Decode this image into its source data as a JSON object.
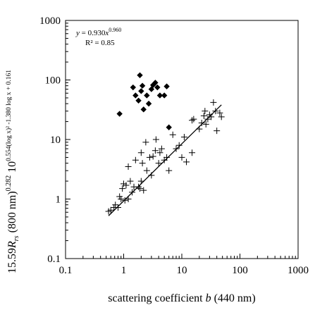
{
  "chart_data": {
    "type": "scatter",
    "xscale": "log",
    "yscale": "log",
    "xlim": [
      0.1,
      1000
    ],
    "ylim": [
      0.1,
      1000
    ],
    "grid": false,
    "xticks": [
      "0.1",
      "1",
      "10",
      "100",
      "1000"
    ],
    "yticks": [
      "0.1",
      "1",
      "10",
      "100",
      "1000"
    ],
    "xlabel": {
      "main": "scattering coefficient ",
      "var": "b",
      "rest": " (440 nm)"
    },
    "ylabel": {
      "prefix": "15.59",
      "var": "R",
      "sub": "rs",
      "mid": " (800 nm)",
      "exp1": "0.282",
      "base": " 10",
      "exp2": "0.554(log x)² -1.380 log x + 0.161"
    },
    "annotation": {
      "eq_lhs": "y",
      "eq_mid": " = 0.930",
      "eq_var": "x",
      "eq_exp": "0.960",
      "r2": "R² = 0.85"
    },
    "fit": {
      "a": 0.93,
      "b": 0.96,
      "x_range": [
        0.55,
        48
      ]
    },
    "series": [
      {
        "marker": "plus",
        "points": [
          [
            0.55,
            0.62
          ],
          [
            0.6,
            0.65
          ],
          [
            0.68,
            0.72
          ],
          [
            0.72,
            0.8
          ],
          [
            0.8,
            0.72
          ],
          [
            0.85,
            1.1
          ],
          [
            0.9,
            1.0
          ],
          [
            0.95,
            1.5
          ],
          [
            1.0,
            1.8
          ],
          [
            1.05,
            0.95
          ],
          [
            1.1,
            1.7
          ],
          [
            1.2,
            1.0
          ],
          [
            1.2,
            3.5
          ],
          [
            1.3,
            2.0
          ],
          [
            1.4,
            1.3
          ],
          [
            1.5,
            1.6
          ],
          [
            1.6,
            4.5
          ],
          [
            1.8,
            1.6
          ],
          [
            1.9,
            1.5
          ],
          [
            2.0,
            2.0
          ],
          [
            2.0,
            6.0
          ],
          [
            2.1,
            4.0
          ],
          [
            2.2,
            1.4
          ],
          [
            2.4,
            9.0
          ],
          [
            2.5,
            3.0
          ],
          [
            2.8,
            5.0
          ],
          [
            3.0,
            2.5
          ],
          [
            3.2,
            5.2
          ],
          [
            3.5,
            6.5
          ],
          [
            3.6,
            10.0
          ],
          [
            4.0,
            4.0
          ],
          [
            4.2,
            6.0
          ],
          [
            4.5,
            7.0
          ],
          [
            5.0,
            4.5
          ],
          [
            5.5,
            5.0
          ],
          [
            6.0,
            3.0
          ],
          [
            7.0,
            12.0
          ],
          [
            8.0,
            7.0
          ],
          [
            9.0,
            8.0
          ],
          [
            10.0,
            5.0
          ],
          [
            11.0,
            11.0
          ],
          [
            12.0,
            4.2
          ],
          [
            15.0,
            6.0
          ],
          [
            15.0,
            21.0
          ],
          [
            16.0,
            22.0
          ],
          [
            20.0,
            15.0
          ],
          [
            22.0,
            19.0
          ],
          [
            24.0,
            25.0
          ],
          [
            25.0,
            30.0
          ],
          [
            26.0,
            18.0
          ],
          [
            28.0,
            22.0
          ],
          [
            30.0,
            26.0
          ],
          [
            32.0,
            24.0
          ],
          [
            35.0,
            42.0
          ],
          [
            38.0,
            30.0
          ],
          [
            40.0,
            14.0
          ],
          [
            45.0,
            28.0
          ],
          [
            48.0,
            24.0
          ]
        ]
      },
      {
        "marker": "diamond",
        "points": [
          [
            0.85,
            27.0
          ],
          [
            1.45,
            75.0
          ],
          [
            1.6,
            55.0
          ],
          [
            1.8,
            45.0
          ],
          [
            1.9,
            120.0
          ],
          [
            2.0,
            65.0
          ],
          [
            2.1,
            80.0
          ],
          [
            2.2,
            32.0
          ],
          [
            2.5,
            55.0
          ],
          [
            2.7,
            40.0
          ],
          [
            3.0,
            70.0
          ],
          [
            3.2,
            82.0
          ],
          [
            3.5,
            90.0
          ],
          [
            3.8,
            75.0
          ],
          [
            4.2,
            55.0
          ],
          [
            5.0,
            55.0
          ],
          [
            5.5,
            78.0
          ],
          [
            6.0,
            16.0
          ]
        ]
      }
    ]
  }
}
